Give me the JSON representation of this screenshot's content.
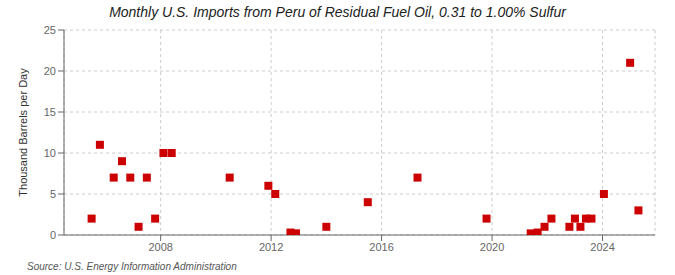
{
  "chart_data": {
    "type": "scatter",
    "title": "Monthly U.S. Imports from Peru of Residual Fuel Oil, 0.31 to 1.00% Sulfur",
    "y_label": "Thousand Barrels per Day",
    "annotations": [
      "Source: U.S. Energy Information Administration"
    ],
    "x": [
      2005.5,
      2005.8,
      2006.3,
      2006.6,
      2006.9,
      2007.2,
      2007.5,
      2007.8,
      2008.1,
      2008.4,
      2010.5,
      2011.9,
      2012.15,
      2012.7,
      2012.9,
      2014.0,
      2015.5,
      2017.3,
      2019.8,
      2021.4,
      2021.65,
      2021.9,
      2022.15,
      2022.8,
      2023.0,
      2023.2,
      2023.4,
      2023.6,
      2024.05,
      2025.0,
      2025.3
    ],
    "values": [
      2,
      11,
      7,
      9,
      7,
      1,
      7,
      2,
      10,
      10,
      7,
      6,
      5,
      0.3,
      0.2,
      1,
      4,
      7,
      2,
      0.2,
      0.3,
      1,
      2,
      1,
      2,
      1,
      2,
      2,
      5,
      21,
      3
    ],
    "color": "#cc0000",
    "marker": "square",
    "xlim": [
      2004.5,
      2025.9
    ],
    "xticks": [
      2008,
      2012,
      2016,
      2020,
      2024
    ],
    "ylim": [
      0,
      25
    ],
    "yticks": [
      0,
      5,
      10,
      15,
      20,
      25
    ],
    "grid": true
  }
}
